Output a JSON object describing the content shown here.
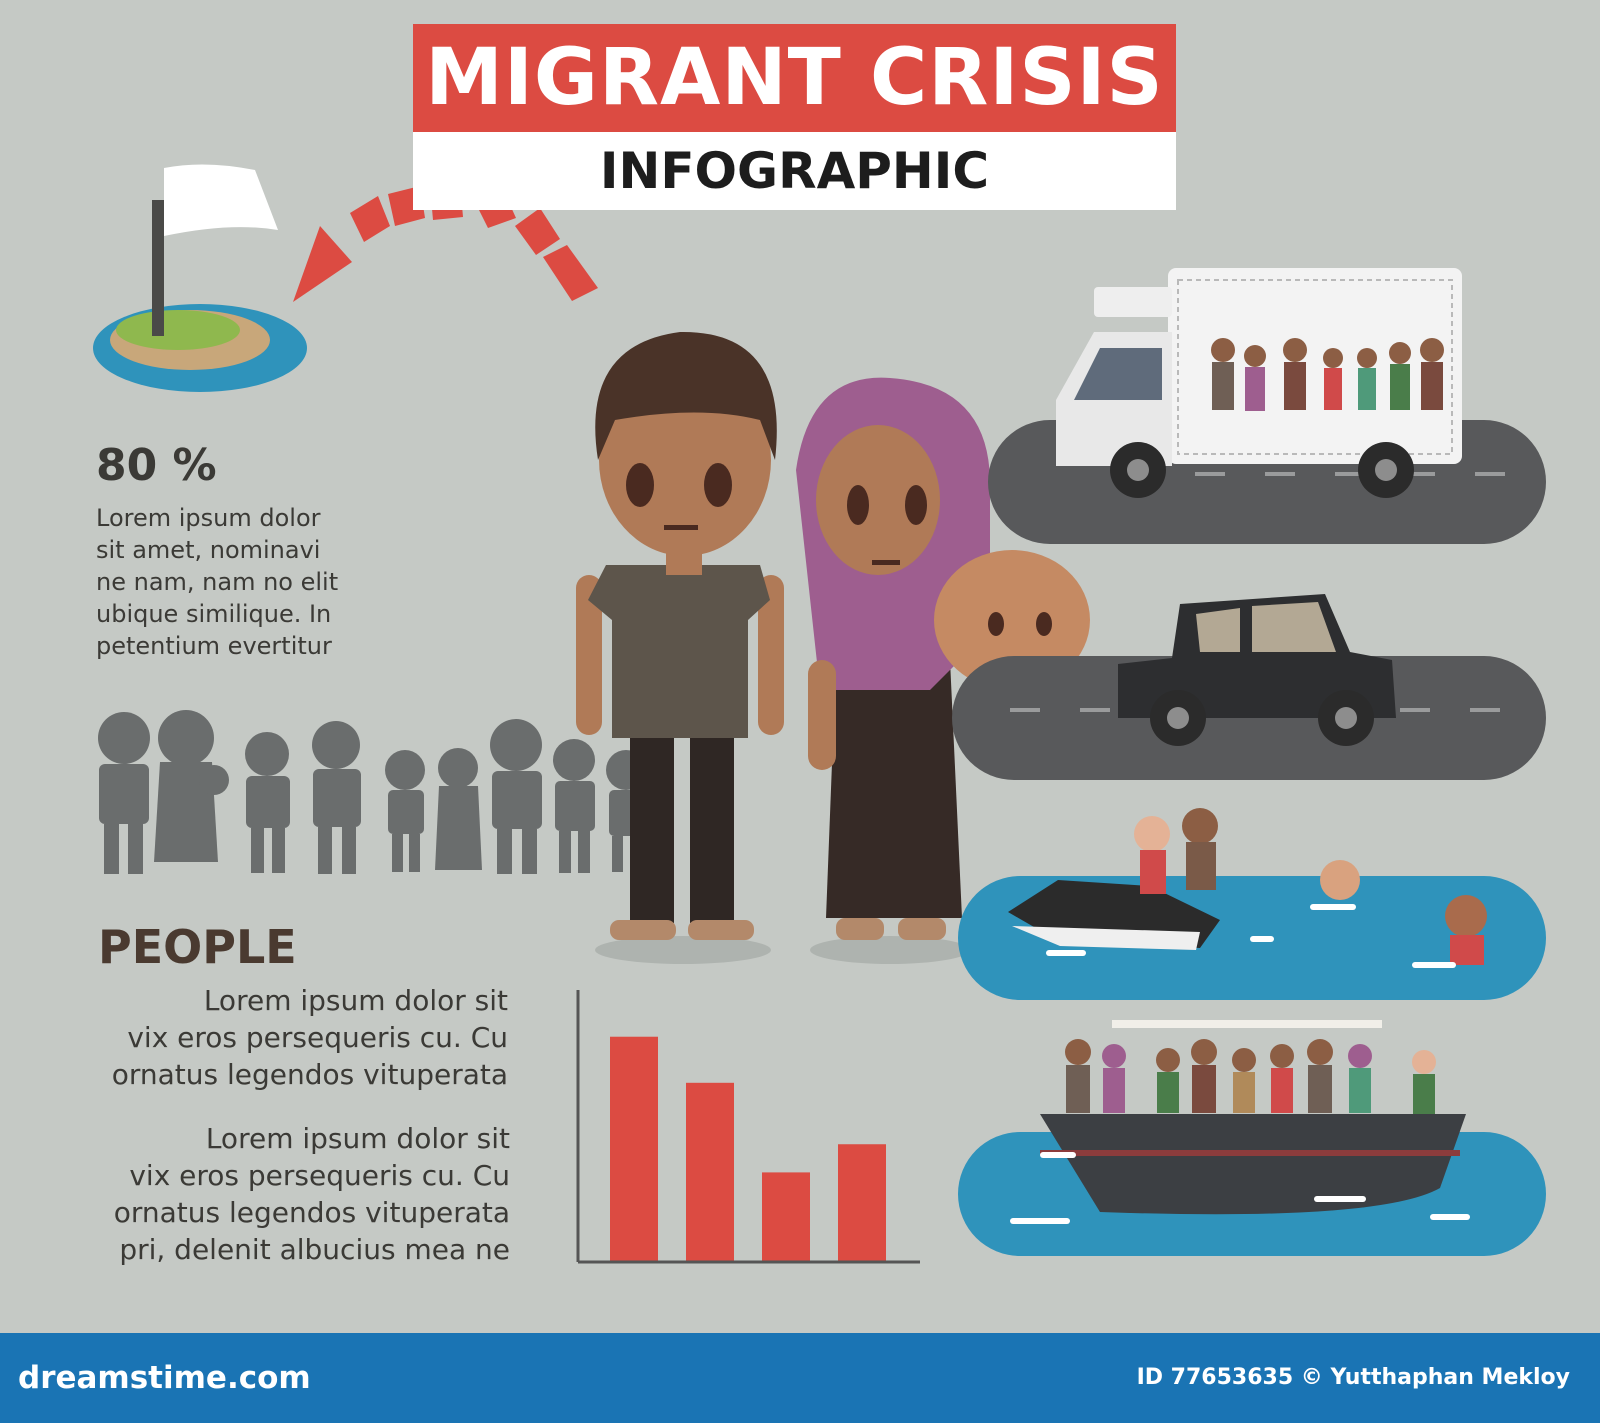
{
  "header": {
    "title": "MIGRANT CRISIS",
    "subtitle": "INFOGRAPHIC"
  },
  "stat": {
    "value": "80 %",
    "text_lines": [
      "Lorem ipsum dolor",
      "sit amet, nominavi",
      "ne nam, nam no elit",
      "ubique similique. In",
      "petentium evertitur"
    ]
  },
  "people": {
    "heading": "PEOPLE",
    "para1": [
      "Lorem ipsum dolor sit",
      "vix eros persequeris cu. Cu",
      "ornatus legendos vituperata"
    ],
    "para2": [
      "Lorem ipsum dolor sit",
      "vix eros persequeris cu. Cu",
      "ornatus legendos vituperata",
      "pri, delenit albucius mea ne"
    ]
  },
  "chart_data": {
    "type": "bar",
    "values": [
      0.88,
      0.7,
      0.35,
      0.46
    ]
  },
  "colors": {
    "accent": "#dc4b42",
    "background": "#c5c9c5",
    "footer": "#1a74b4",
    "water": "#2f93bb",
    "road": "#58595b",
    "silhouette": "#6a6d6d"
  },
  "footer": {
    "brand": "dreamstime.com",
    "credit": "ID 77653635 © Yutthaphan Mekloy"
  }
}
